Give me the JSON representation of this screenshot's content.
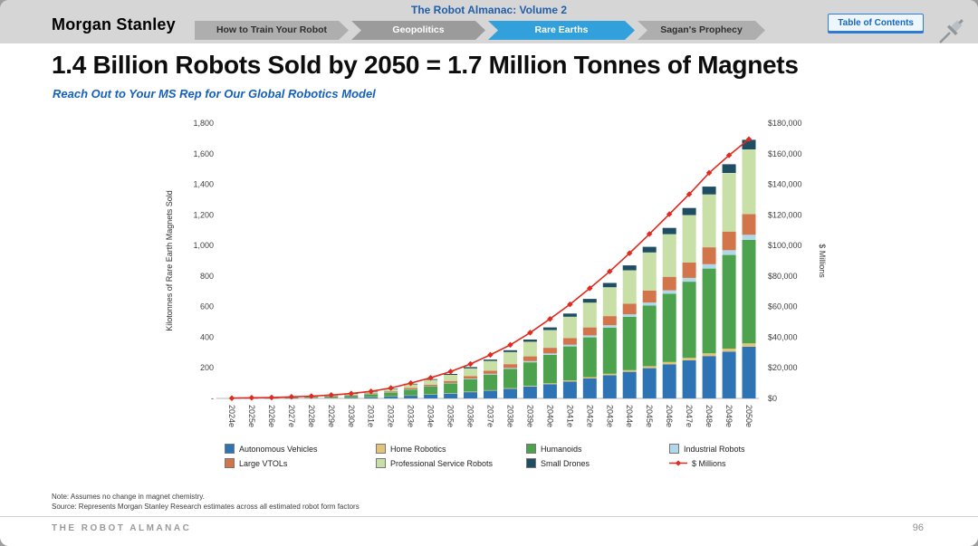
{
  "header": {
    "brand": "Morgan Stanley",
    "volume_title": "The Robot Almanac: Volume 2",
    "nav_tabs": [
      {
        "label": "How to Train Your Robot",
        "active": false
      },
      {
        "label": "Geopolitics",
        "active": false
      },
      {
        "label": "Rare Earths",
        "active": true
      },
      {
        "label": "Sagan's Prophecy",
        "active": false
      }
    ],
    "toc_button": "Table of Contents"
  },
  "title": "1.4 Billion Robots Sold by 2050 = 1.7 Million Tonnes of Magnets",
  "subtitle": "Reach Out to Your MS Rep for Our Global Robotics Model",
  "chart_data": {
    "type": "bar",
    "stacked": true,
    "line_overlay": true,
    "grid": false,
    "legend_position": "bottom",
    "categories": [
      "2024e",
      "2025e",
      "2026e",
      "2027e",
      "2028e",
      "2029e",
      "2030e",
      "2031e",
      "2032e",
      "2033e",
      "2034e",
      "2035e",
      "2036e",
      "2037e",
      "2038e",
      "2039e",
      "2040e",
      "2041e",
      "2042e",
      "2043e",
      "2044e",
      "2045e",
      "2046e",
      "2047e",
      "2048e",
      "2049e",
      "2050e"
    ],
    "series": [
      {
        "name": "Autonomous Vehicles",
        "color": "#2e74b5",
        "values": [
          0,
          1,
          1,
          2,
          3,
          4,
          6,
          9,
          13,
          19,
          25,
          32,
          41,
          51,
          63,
          77,
          93,
          111,
          130,
          151,
          174,
          198,
          223,
          249,
          277,
          306,
          338
        ]
      },
      {
        "name": "Home Robotics",
        "color": "#e3c377",
        "values": [
          0,
          0,
          0,
          0,
          1,
          1,
          1,
          1,
          1,
          1,
          2,
          2,
          3,
          3,
          4,
          5,
          6,
          7,
          9,
          10,
          11,
          13,
          15,
          16,
          18,
          20,
          22
        ]
      },
      {
        "name": "Humanoids",
        "color": "#4da24e",
        "values": [
          1,
          2,
          2,
          4,
          6,
          9,
          13,
          18,
          26,
          38,
          50,
          64,
          82,
          102,
          126,
          154,
          186,
          222,
          260,
          302,
          348,
          396,
          446,
          498,
          554,
          612,
          676
        ]
      },
      {
        "name": "Industrial Robots",
        "color": "#afd8ea",
        "values": [
          0,
          0,
          0,
          0,
          0,
          1,
          1,
          1,
          1,
          2,
          3,
          3,
          4,
          5,
          6,
          8,
          9,
          11,
          13,
          15,
          17,
          20,
          22,
          25,
          28,
          31,
          34
        ]
      },
      {
        "name": "Large VTOLs",
        "color": "#d2754b",
        "values": [
          0,
          0,
          1,
          1,
          1,
          2,
          3,
          4,
          5,
          8,
          10,
          13,
          16,
          20,
          25,
          31,
          37,
          44,
          52,
          60,
          70,
          79,
          89,
          100,
          111,
          122,
          135
        ]
      },
      {
        "name": "Professional Service Robots",
        "color": "#c8dfa8",
        "values": [
          1,
          1,
          2,
          3,
          4,
          6,
          8,
          11,
          16,
          24,
          31,
          40,
          51,
          64,
          79,
          96,
          116,
          139,
          163,
          189,
          218,
          248,
          279,
          311,
          346,
          383,
          423
        ]
      },
      {
        "name": "Small Drones",
        "color": "#1f4d63",
        "values": [
          0,
          0,
          0,
          0,
          1,
          1,
          1,
          2,
          2,
          4,
          5,
          6,
          8,
          9,
          12,
          14,
          17,
          21,
          24,
          28,
          32,
          37,
          41,
          46,
          51,
          57,
          63
        ]
      }
    ],
    "line_series": {
      "name": "$ Millions",
      "color": "#e02b20",
      "values": [
        200,
        400,
        600,
        1000,
        1500,
        2200,
        3200,
        4600,
        6800,
        10000,
        13500,
        17500,
        22500,
        28500,
        35000,
        43000,
        52000,
        61500,
        72000,
        83000,
        95000,
        107500,
        120500,
        133500,
        147500,
        159000,
        169500
      ]
    },
    "left_axis": {
      "label": "Kilotonnes of Rare Earth Magnets Sold",
      "min": 0,
      "max": 1800,
      "tick_labels": [
        "-",
        "200",
        "400",
        "600",
        "800",
        "1,000",
        "1,200",
        "1,400",
        "1,600",
        "1,800"
      ]
    },
    "right_axis": {
      "label": "$ Millions",
      "min": 0,
      "max": 180000,
      "tick_labels": [
        "$0",
        "$20,000",
        "$40,000",
        "$60,000",
        "$80,000",
        "$100,000",
        "$120,000",
        "$140,000",
        "$160,000",
        "$180,000"
      ]
    }
  },
  "footnotes": {
    "note": "Note: Assumes no change in magnet chemistry.",
    "source": "Source: Represents Morgan Stanley Research estimates across all estimated robot form factors"
  },
  "footer": {
    "left": "THE ROBOT ALMANAC",
    "page": "96"
  }
}
